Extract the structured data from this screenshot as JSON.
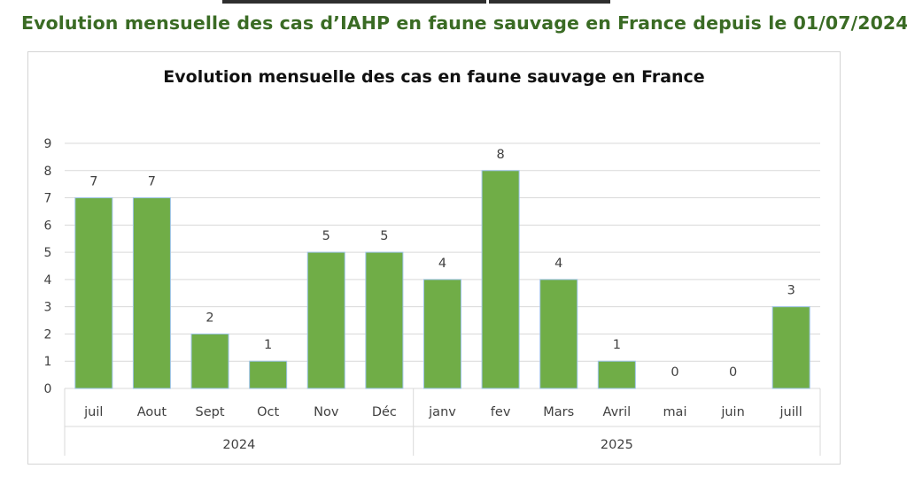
{
  "header": {
    "title": "Evolution mensuelle des cas d’IAHP en faune sauvage en France depuis le 01/07/2024"
  },
  "colors": {
    "title": "#3a6b24",
    "bar_fill": "#70ad47",
    "bar_edge": "#9dc3e6",
    "grid": "#d9d9d9"
  },
  "chart_data": {
    "type": "bar",
    "title": "Evolution mensuelle des cas en faune sauvage en France",
    "categories": [
      "juil",
      "Aout",
      "Sept",
      "Oct",
      "Nov",
      "Déc",
      "janv",
      "fev",
      "Mars",
      "Avril",
      "mai",
      "juin",
      "juill"
    ],
    "groups": [
      {
        "label": "2024",
        "start": 0,
        "end": 5
      },
      {
        "label": "2025",
        "start": 6,
        "end": 12
      }
    ],
    "values": [
      7,
      7,
      2,
      1,
      5,
      5,
      4,
      8,
      4,
      1,
      0,
      0,
      3
    ],
    "ylim": [
      0,
      9
    ],
    "yticks": [
      0,
      1,
      2,
      3,
      4,
      5,
      6,
      7,
      8,
      9
    ],
    "xlabel": "",
    "ylabel": "",
    "grid": true,
    "data_labels": true,
    "legend": "none"
  }
}
